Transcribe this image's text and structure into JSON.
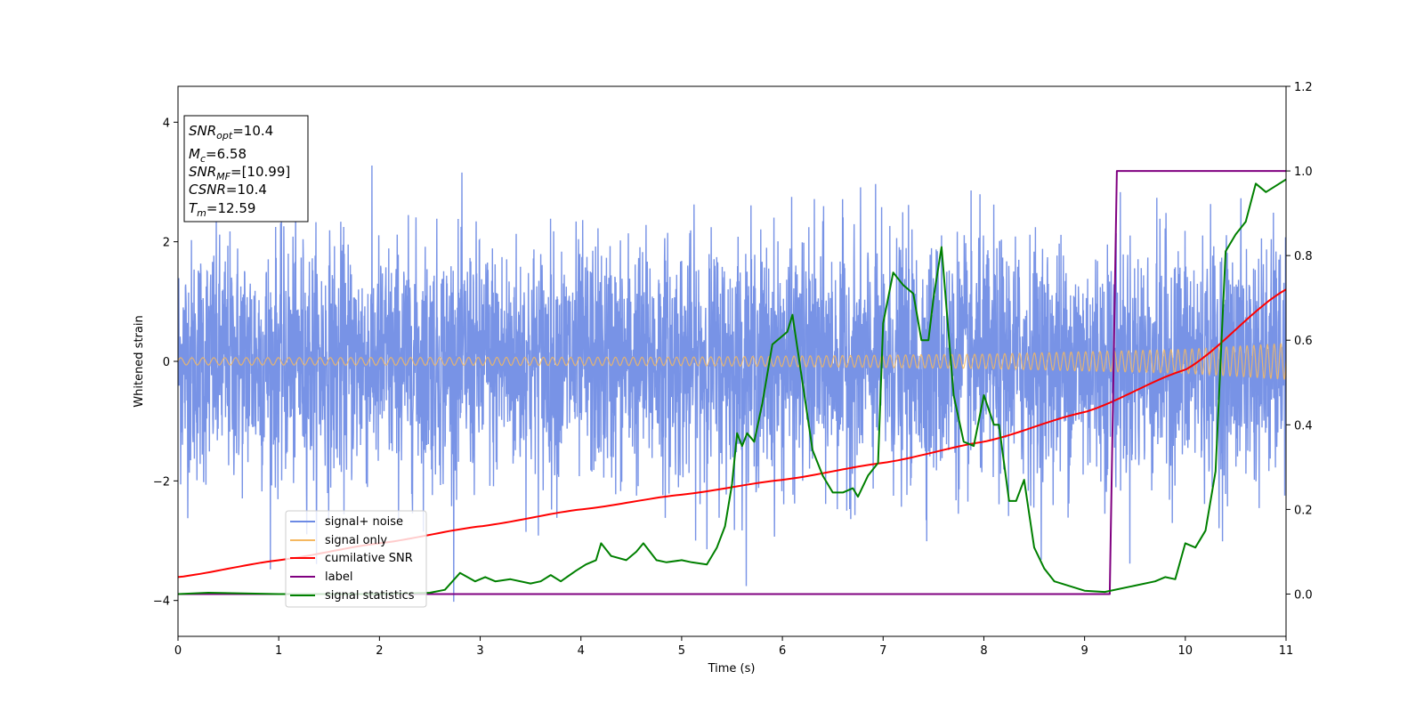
{
  "chart_data": {
    "type": "line",
    "xlabel": "Time (s)",
    "ylabel": "Whitened strain",
    "xlim": [
      0,
      11
    ],
    "ylim_left": [
      -4.6,
      4.6
    ],
    "ylim_right": [
      -0.1,
      1.2
    ],
    "x_ticks": [
      "0",
      "1",
      "2",
      "3",
      "4",
      "5",
      "6",
      "7",
      "8",
      "9",
      "10",
      "11"
    ],
    "y_ticks_left": [
      "−4",
      "−2",
      "0",
      "2",
      "4"
    ],
    "y_ticks_right": [
      "0.0",
      "0.2",
      "0.4",
      "0.6",
      "0.8",
      "1.0",
      "1.2"
    ],
    "legend_position": "lower-left",
    "colors": {
      "noise": "#6c8ae4",
      "signal": "#f5b860",
      "csnr": "#ff0000",
      "label": "#800080",
      "stat": "#008000"
    },
    "annotation": {
      "snr_opt": "=10.4",
      "mc": "=6.58",
      "snr_mf": "=[10.99]",
      "csnr": "=10.4",
      "tm": "=12.59"
    },
    "series": [
      {
        "name": "signal+ noise",
        "axis": "left",
        "description_values": "white noise, standard deviation approximately 1, extrema between -4.2 and 4.1"
      },
      {
        "name": "signal only",
        "axis": "left",
        "envelope_x": [
          0,
          5,
          8,
          10,
          11
        ],
        "envelope_amp": [
          0.06,
          0.07,
          0.12,
          0.2,
          0.3
        ]
      },
      {
        "name": "cumilative SNR",
        "axis": "right",
        "x": [
          0,
          1,
          2,
          3,
          4,
          5,
          6,
          7,
          8,
          9,
          10,
          11
        ],
        "y": [
          0.04,
          0.08,
          0.12,
          0.16,
          0.2,
          0.235,
          0.27,
          0.31,
          0.36,
          0.43,
          0.53,
          0.72
        ]
      },
      {
        "name": "label",
        "axis": "right",
        "x": [
          0,
          9.25,
          9.32,
          11
        ],
        "y": [
          0,
          0,
          1,
          1
        ]
      },
      {
        "name": "signal statistics",
        "axis": "right",
        "x": [
          0,
          0.3,
          1,
          2,
          2.5,
          2.65,
          2.8,
          2.95,
          3.05,
          3.15,
          3.3,
          3.5,
          3.6,
          3.7,
          3.8,
          3.95,
          4.05,
          4.15,
          4.2,
          4.3,
          4.45,
          4.55,
          4.62,
          4.75,
          4.85,
          5.0,
          5.1,
          5.25,
          5.35,
          5.43,
          5.5,
          5.55,
          5.6,
          5.65,
          5.72,
          5.8,
          5.9,
          6.0,
          6.05,
          6.1,
          6.2,
          6.3,
          6.4,
          6.5,
          6.6,
          6.7,
          6.75,
          6.85,
          6.95,
          7.0,
          7.1,
          7.2,
          7.3,
          7.38,
          7.45,
          7.5,
          7.58,
          7.7,
          7.8,
          7.9,
          8.0,
          8.1,
          8.15,
          8.25,
          8.32,
          8.4,
          8.5,
          8.6,
          8.7,
          9.0,
          9.2,
          9.5,
          9.7,
          9.8,
          9.9,
          10.0,
          10.1,
          10.2,
          10.3,
          10.4,
          10.5,
          10.6,
          10.7,
          10.8,
          11.0
        ],
        "y": [
          0.0,
          0.003,
          0.0,
          0.0,
          0.003,
          0.01,
          0.05,
          0.03,
          0.04,
          0.03,
          0.035,
          0.025,
          0.03,
          0.045,
          0.03,
          0.055,
          0.07,
          0.08,
          0.12,
          0.09,
          0.08,
          0.1,
          0.12,
          0.08,
          0.075,
          0.08,
          0.075,
          0.07,
          0.11,
          0.16,
          0.26,
          0.38,
          0.35,
          0.38,
          0.36,
          0.45,
          0.59,
          0.61,
          0.62,
          0.66,
          0.5,
          0.34,
          0.28,
          0.24,
          0.24,
          0.25,
          0.23,
          0.28,
          0.31,
          0.64,
          0.76,
          0.73,
          0.71,
          0.6,
          0.6,
          0.7,
          0.82,
          0.47,
          0.36,
          0.35,
          0.47,
          0.4,
          0.4,
          0.22,
          0.22,
          0.27,
          0.11,
          0.06,
          0.03,
          0.008,
          0.005,
          0.02,
          0.03,
          0.04,
          0.035,
          0.12,
          0.11,
          0.15,
          0.29,
          0.81,
          0.85,
          0.88,
          0.97,
          0.95,
          0.98
        ]
      }
    ]
  }
}
